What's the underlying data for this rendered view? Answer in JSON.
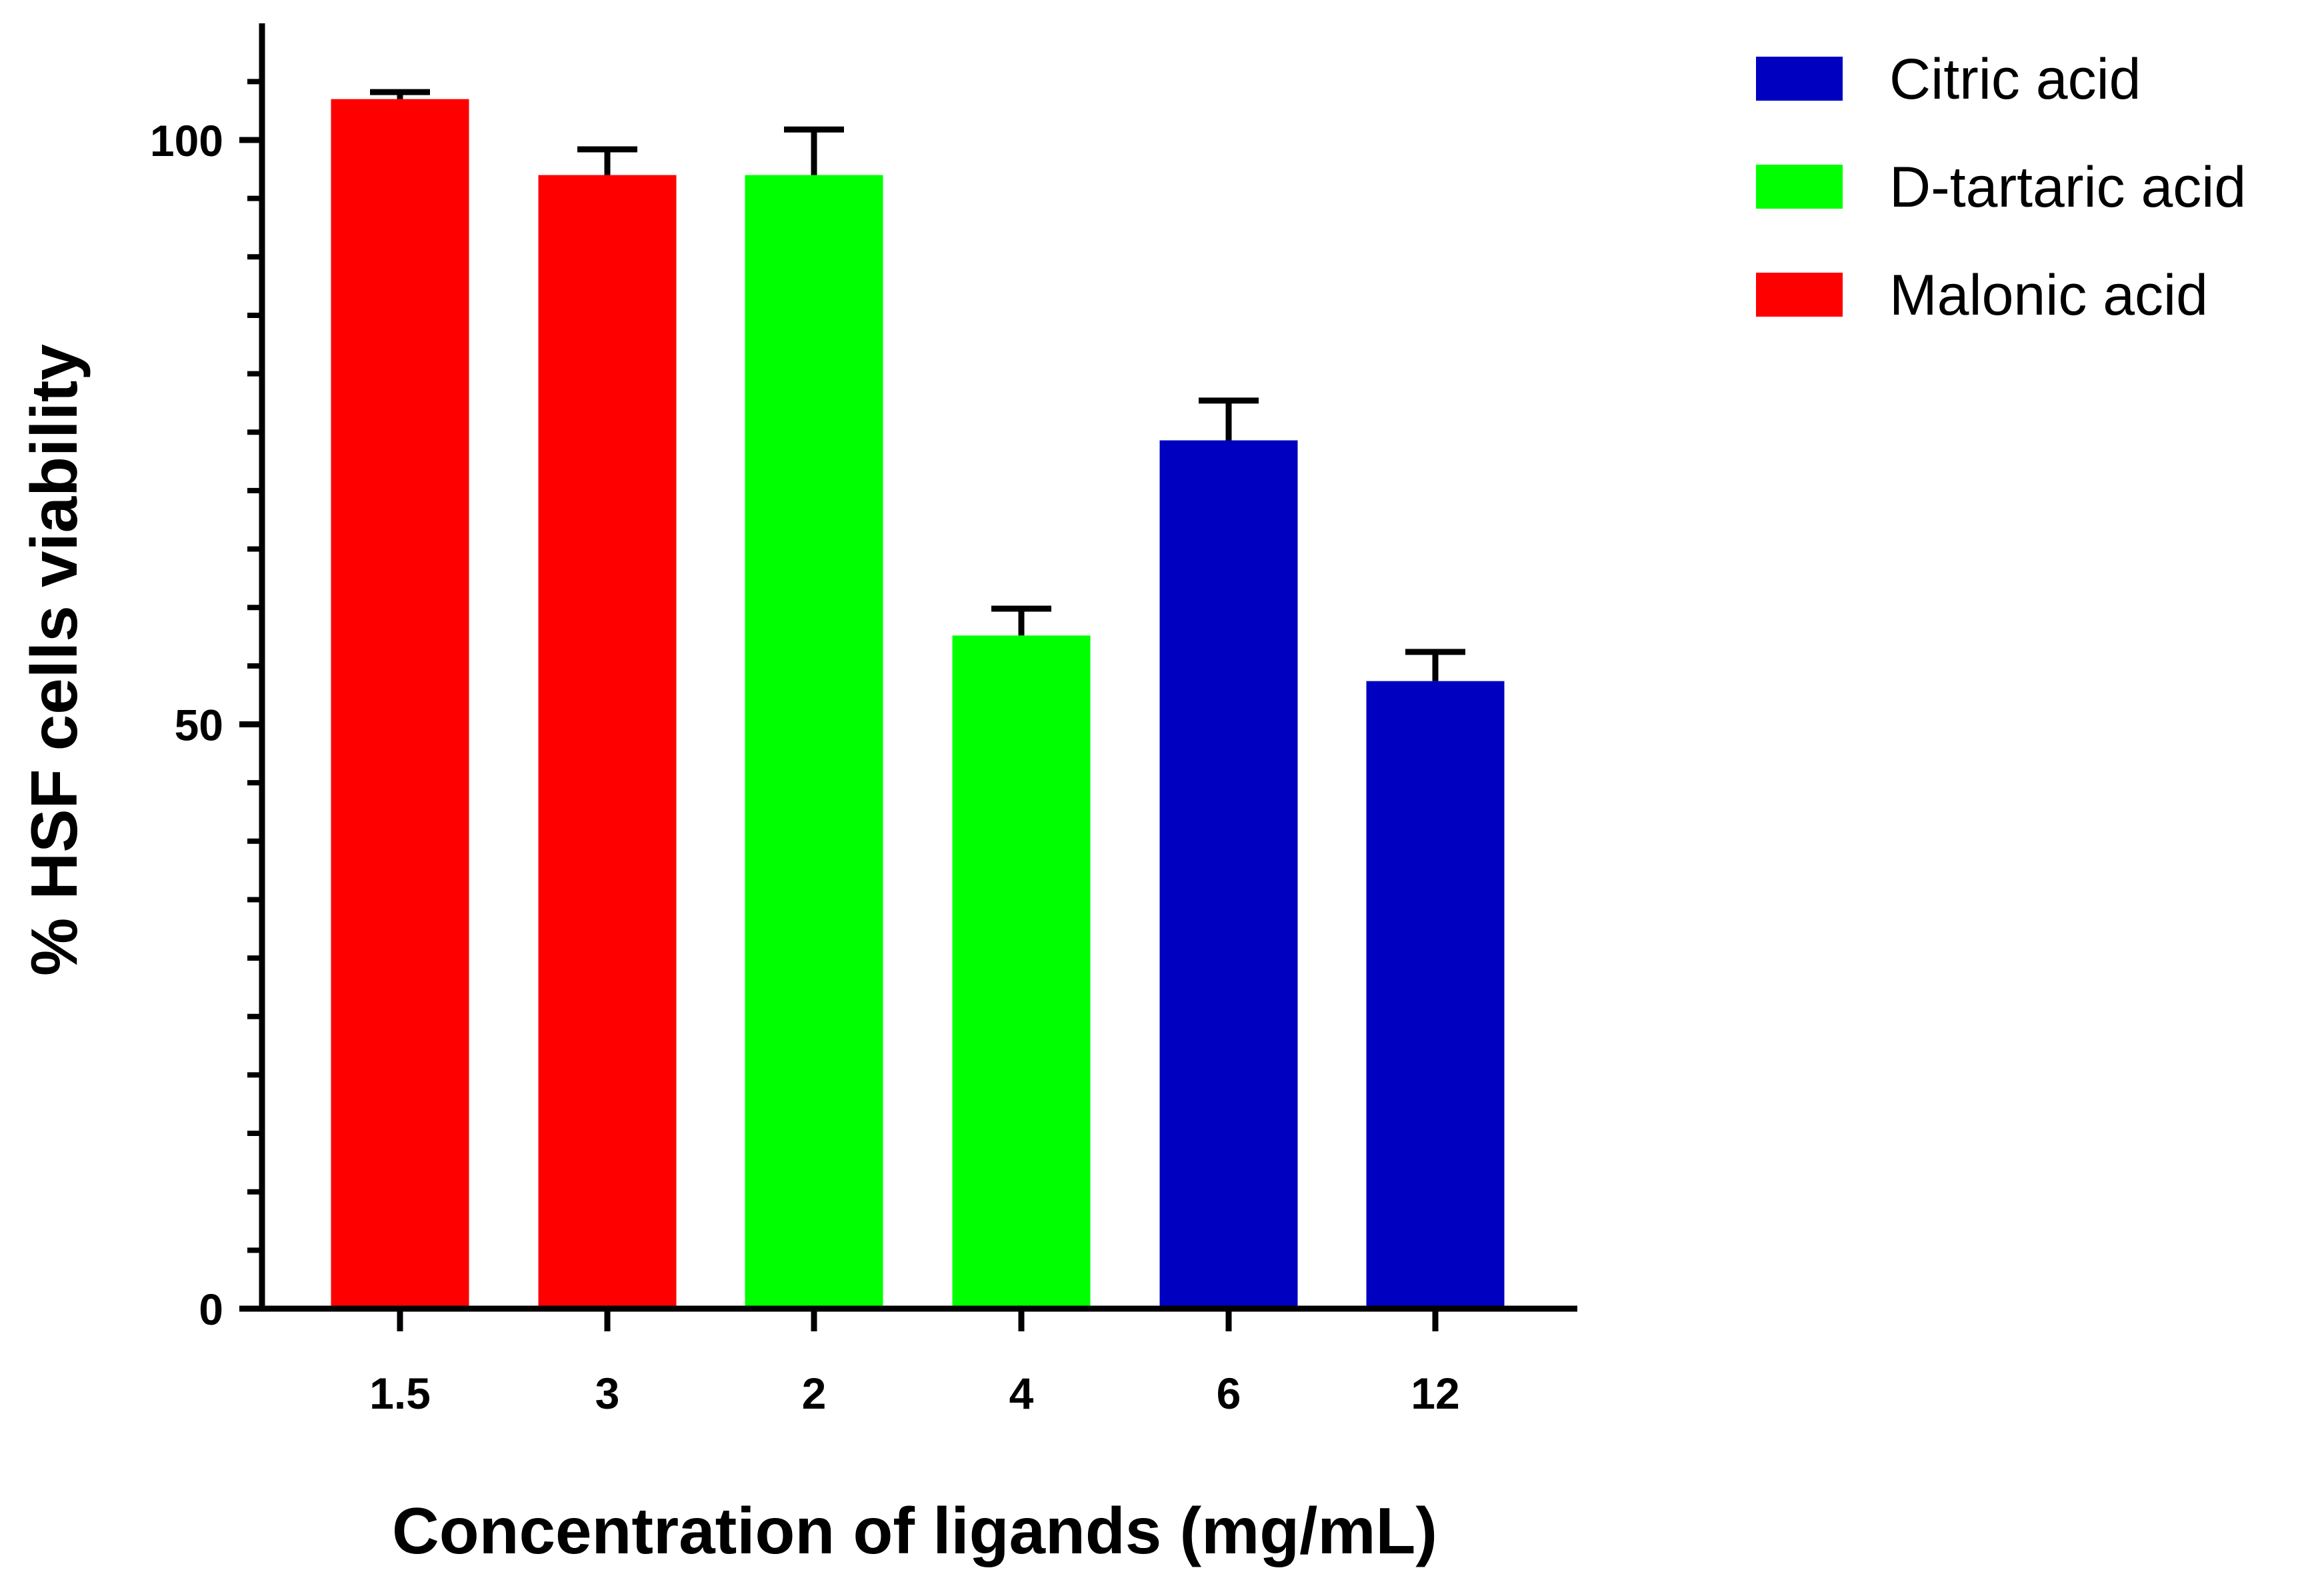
{
  "chart_data": {
    "type": "bar",
    "title": "",
    "xlabel": "Concentration of ligands (mg/mL)",
    "ylabel": "% HSF cells viability",
    "ylim": [
      0,
      110
    ],
    "yticks": [
      {
        "value": 0,
        "label": "0"
      },
      {
        "value": 50,
        "label": "50"
      },
      {
        "value": 100,
        "label": "100"
      }
    ],
    "minor_tick_step": 5,
    "categories": [
      "1.5",
      "3",
      "2",
      "4",
      "6",
      "12"
    ],
    "bars": [
      {
        "category": "1.5",
        "series": "Malonic acid",
        "value": 103.5,
        "error": 0.6
      },
      {
        "category": "3",
        "series": "Malonic acid",
        "value": 97,
        "error": 2.2
      },
      {
        "category": "2",
        "series": "D-tartaric acid",
        "value": 97,
        "error": 3.9
      },
      {
        "category": "4",
        "series": "D-tartaric acid",
        "value": 57.6,
        "error": 2.3
      },
      {
        "category": "6",
        "series": "Citric acid",
        "value": 74.3,
        "error": 3.4
      },
      {
        "category": "12",
        "series": "Citric acid",
        "value": 53.7,
        "error": 2.5
      }
    ],
    "series": [
      {
        "name": "Citric acid",
        "color": "#0000c0"
      },
      {
        "name": "D-tartaric acid",
        "color": "#00ff00"
      },
      {
        "name": "Malonic acid",
        "color": "#ff0000"
      }
    ],
    "legend_position": "top-right",
    "grid": false
  }
}
